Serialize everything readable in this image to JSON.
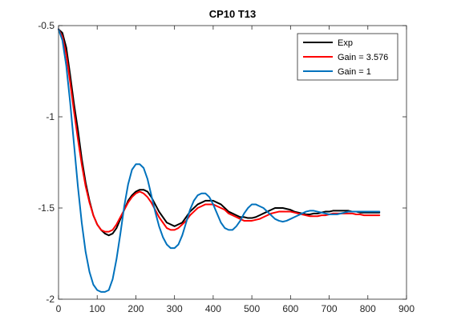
{
  "chart_data": {
    "type": "line",
    "title": "CP10 T13",
    "xlabel": "",
    "ylabel": "",
    "xlim": [
      0,
      900
    ],
    "ylim": [
      -2,
      -0.5
    ],
    "xticks": [
      0,
      100,
      200,
      300,
      400,
      500,
      600,
      700,
      800,
      900
    ],
    "yticks": [
      -0.5,
      -1,
      -1.5,
      -2
    ],
    "xtick_labels": [
      "0",
      "100",
      "200",
      "300",
      "400",
      "500",
      "600",
      "700",
      "800",
      "900"
    ],
    "ytick_labels": [
      "-0.5",
      "-1",
      "-1.5",
      "-2"
    ],
    "grid": false,
    "legend_position": "top-right",
    "series": [
      {
        "name": "Exp",
        "color": "#000000",
        "x": [
          0,
          10,
          20,
          30,
          40,
          50,
          60,
          70,
          80,
          90,
          100,
          110,
          120,
          130,
          140,
          150,
          160,
          170,
          180,
          190,
          200,
          210,
          220,
          230,
          240,
          250,
          260,
          270,
          280,
          290,
          300,
          310,
          320,
          330,
          340,
          350,
          360,
          370,
          380,
          390,
          400,
          410,
          420,
          430,
          440,
          450,
          460,
          470,
          480,
          490,
          500,
          510,
          520,
          530,
          540,
          550,
          560,
          570,
          580,
          590,
          600,
          610,
          620,
          630,
          640,
          650,
          660,
          670,
          680,
          690,
          700,
          710,
          720,
          730,
          740,
          750,
          760,
          770,
          780,
          790,
          800,
          810,
          820,
          830
        ],
        "y": [
          -0.52,
          -0.54,
          -0.62,
          -0.77,
          -0.93,
          -1.07,
          -1.23,
          -1.36,
          -1.46,
          -1.54,
          -1.59,
          -1.62,
          -1.64,
          -1.65,
          -1.64,
          -1.61,
          -1.56,
          -1.51,
          -1.46,
          -1.43,
          -1.41,
          -1.4,
          -1.4,
          -1.41,
          -1.44,
          -1.48,
          -1.52,
          -1.55,
          -1.58,
          -1.59,
          -1.6,
          -1.59,
          -1.58,
          -1.55,
          -1.52,
          -1.5,
          -1.48,
          -1.47,
          -1.46,
          -1.46,
          -1.46,
          -1.47,
          -1.48,
          -1.5,
          -1.52,
          -1.53,
          -1.54,
          -1.55,
          -1.55,
          -1.555,
          -1.555,
          -1.55,
          -1.54,
          -1.53,
          -1.52,
          -1.51,
          -1.5,
          -1.5,
          -1.5,
          -1.505,
          -1.51,
          -1.52,
          -1.525,
          -1.53,
          -1.535,
          -1.535,
          -1.53,
          -1.53,
          -1.525,
          -1.52,
          -1.52,
          -1.515,
          -1.515,
          -1.515,
          -1.515,
          -1.515,
          -1.52,
          -1.52,
          -1.525,
          -1.525,
          -1.525,
          -1.525,
          -1.525,
          -1.525
        ]
      },
      {
        "name": "Gain = 3.576",
        "color": "#ff0000",
        "x": [
          0,
          10,
          20,
          30,
          40,
          50,
          60,
          70,
          80,
          90,
          100,
          110,
          120,
          130,
          140,
          150,
          160,
          170,
          180,
          190,
          200,
          210,
          220,
          230,
          240,
          250,
          260,
          270,
          280,
          290,
          300,
          310,
          320,
          330,
          340,
          350,
          360,
          370,
          380,
          390,
          400,
          410,
          420,
          430,
          440,
          450,
          460,
          470,
          480,
          490,
          500,
          510,
          520,
          530,
          540,
          550,
          560,
          570,
          580,
          590,
          600,
          610,
          620,
          630,
          640,
          650,
          660,
          670,
          680,
          690,
          700,
          710,
          720,
          730,
          740,
          750,
          760,
          770,
          780,
          790,
          800,
          810,
          820,
          830
        ],
        "y": [
          -0.52,
          -0.56,
          -0.66,
          -0.81,
          -0.97,
          -1.12,
          -1.26,
          -1.38,
          -1.47,
          -1.54,
          -1.59,
          -1.62,
          -1.63,
          -1.63,
          -1.62,
          -1.59,
          -1.55,
          -1.51,
          -1.47,
          -1.44,
          -1.42,
          -1.41,
          -1.42,
          -1.44,
          -1.47,
          -1.51,
          -1.55,
          -1.58,
          -1.61,
          -1.62,
          -1.62,
          -1.61,
          -1.59,
          -1.57,
          -1.54,
          -1.52,
          -1.5,
          -1.49,
          -1.48,
          -1.48,
          -1.48,
          -1.49,
          -1.5,
          -1.51,
          -1.53,
          -1.54,
          -1.55,
          -1.56,
          -1.57,
          -1.57,
          -1.57,
          -1.565,
          -1.56,
          -1.55,
          -1.54,
          -1.53,
          -1.525,
          -1.52,
          -1.52,
          -1.52,
          -1.52,
          -1.525,
          -1.53,
          -1.535,
          -1.54,
          -1.545,
          -1.545,
          -1.545,
          -1.54,
          -1.54,
          -1.535,
          -1.53,
          -1.53,
          -1.53,
          -1.53,
          -1.53,
          -1.53,
          -1.535,
          -1.535,
          -1.54,
          -1.54,
          -1.54,
          -1.54,
          -1.54
        ]
      },
      {
        "name": "Gain = 1",
        "color": "#0072bd",
        "x": [
          0,
          10,
          20,
          30,
          40,
          50,
          60,
          70,
          80,
          90,
          100,
          110,
          120,
          130,
          140,
          150,
          160,
          170,
          180,
          190,
          200,
          210,
          220,
          230,
          240,
          250,
          260,
          270,
          280,
          290,
          300,
          310,
          320,
          330,
          340,
          350,
          360,
          370,
          380,
          390,
          400,
          410,
          420,
          430,
          440,
          450,
          460,
          470,
          480,
          490,
          500,
          510,
          520,
          530,
          540,
          550,
          560,
          570,
          580,
          590,
          600,
          610,
          620,
          630,
          640,
          650,
          660,
          670,
          680,
          690,
          700,
          710,
          720,
          730,
          740,
          750,
          760,
          770,
          780,
          790,
          800,
          810,
          820,
          830
        ],
        "y": [
          -0.52,
          -0.58,
          -0.72,
          -0.92,
          -1.15,
          -1.38,
          -1.58,
          -1.74,
          -1.85,
          -1.92,
          -1.95,
          -1.96,
          -1.96,
          -1.95,
          -1.89,
          -1.78,
          -1.64,
          -1.49,
          -1.37,
          -1.29,
          -1.26,
          -1.26,
          -1.28,
          -1.34,
          -1.43,
          -1.52,
          -1.6,
          -1.66,
          -1.7,
          -1.72,
          -1.72,
          -1.7,
          -1.65,
          -1.58,
          -1.51,
          -1.46,
          -1.43,
          -1.42,
          -1.42,
          -1.44,
          -1.48,
          -1.53,
          -1.58,
          -1.61,
          -1.62,
          -1.62,
          -1.6,
          -1.57,
          -1.53,
          -1.5,
          -1.48,
          -1.48,
          -1.49,
          -1.5,
          -1.52,
          -1.54,
          -1.56,
          -1.57,
          -1.575,
          -1.57,
          -1.56,
          -1.55,
          -1.54,
          -1.53,
          -1.52,
          -1.515,
          -1.515,
          -1.52,
          -1.525,
          -1.53,
          -1.535,
          -1.535,
          -1.535,
          -1.53,
          -1.525,
          -1.52,
          -1.52,
          -1.52,
          -1.52,
          -1.52,
          -1.52,
          -1.52,
          -1.52,
          -1.52
        ]
      }
    ]
  }
}
